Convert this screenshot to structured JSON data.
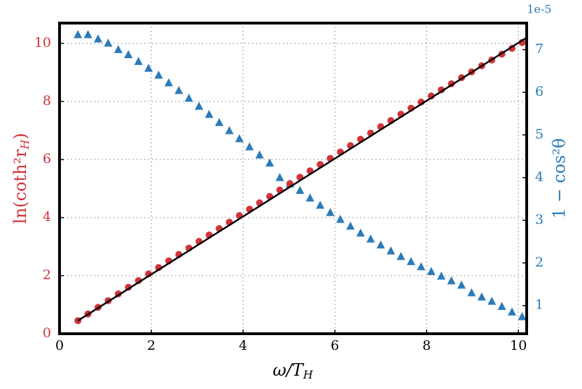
{
  "chart_data": {
    "type": "scatter",
    "xlabel": {
      "base": "ω/T",
      "sub": "H"
    },
    "ylabel": {
      "base": "ln(coth²r",
      "sub": "H",
      "tail": ")"
    },
    "y2label": "1 − cos²θ",
    "y2offset": "1e-5",
    "xlim": [
      0,
      10.18
    ],
    "ylim": [
      0,
      10.7
    ],
    "y2lim": [
      0.34,
      7.62
    ],
    "xticks": [
      0,
      2,
      4,
      6,
      8,
      10
    ],
    "yticks": [
      0,
      2,
      4,
      6,
      8,
      10
    ],
    "y2ticks": [
      1,
      2,
      3,
      4,
      5,
      6,
      7
    ],
    "grid": true,
    "ycolor": "#d0343a",
    "y2color": "#2b7bba",
    "x": [
      0.4,
      0.62,
      0.84,
      1.06,
      1.28,
      1.5,
      1.72,
      1.94,
      2.16,
      2.38,
      2.6,
      2.82,
      3.04,
      3.26,
      3.48,
      3.7,
      3.92,
      4.14,
      4.36,
      4.58,
      4.8,
      5.02,
      5.24,
      5.46,
      5.68,
      5.9,
      6.12,
      6.34,
      6.56,
      6.78,
      7.0,
      7.22,
      7.44,
      7.66,
      7.88,
      8.1,
      8.32,
      8.54,
      8.76,
      8.98,
      9.2,
      9.42,
      9.64,
      9.86,
      10.08
    ],
    "series": [
      {
        "type": "scatter",
        "marker": "triangle",
        "axis": "y2",
        "color": "#2b7bba",
        "values": [
          7.35,
          7.35,
          7.25,
          7.15,
          7.0,
          6.88,
          6.72,
          6.56,
          6.4,
          6.22,
          6.04,
          5.86,
          5.67,
          5.48,
          5.29,
          5.1,
          4.91,
          4.72,
          4.53,
          4.34,
          4.0,
          3.85,
          3.7,
          3.52,
          3.35,
          3.18,
          3.02,
          2.86,
          2.7,
          2.56,
          2.42,
          2.28,
          2.15,
          2.03,
          1.91,
          1.8,
          1.69,
          1.58,
          1.48,
          1.3,
          1.2,
          1.1,
          0.98,
          0.85,
          0.74
        ]
      },
      {
        "type": "scatter",
        "marker": "circle",
        "color": "#d0343a",
        "values": [
          0.45,
          0.68,
          0.91,
          1.14,
          1.37,
          1.6,
          1.83,
          2.06,
          2.28,
          2.51,
          2.73,
          2.95,
          3.18,
          3.4,
          3.62,
          3.84,
          4.07,
          4.29,
          4.51,
          4.73,
          4.95,
          5.17,
          5.39,
          5.61,
          5.83,
          6.04,
          6.26,
          6.48,
          6.7,
          6.91,
          7.13,
          7.34,
          7.56,
          7.77,
          7.98,
          8.19,
          8.4,
          8.61,
          8.82,
          9.02,
          9.23,
          9.43,
          9.63,
          9.83,
          10.03
        ]
      },
      {
        "type": "line",
        "color": "#000000",
        "x": [
          0.4,
          10.18
        ],
        "values": [
          0.45,
          10.2
        ]
      }
    ]
  }
}
